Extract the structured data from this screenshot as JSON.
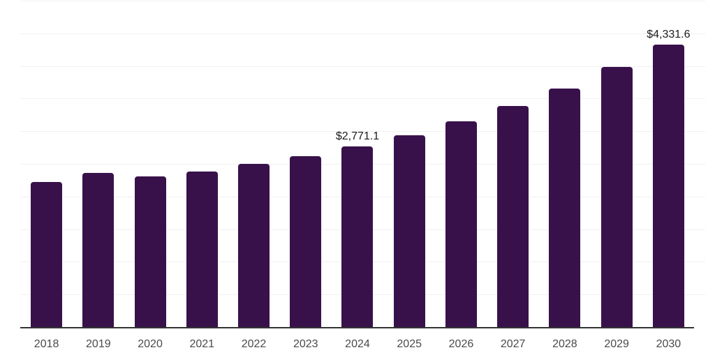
{
  "chart_data": {
    "type": "bar",
    "title": "",
    "xlabel": "",
    "ylabel": "",
    "categories": [
      "2018",
      "2019",
      "2020",
      "2021",
      "2022",
      "2023",
      "2024",
      "2025",
      "2026",
      "2027",
      "2028",
      "2029",
      "2030"
    ],
    "values": [
      2225,
      2360,
      2310,
      2380,
      2505,
      2620,
      2771.1,
      2940,
      3150,
      3390,
      3655,
      3985,
      4331.6
    ],
    "data_labels": [
      null,
      null,
      null,
      null,
      null,
      null,
      "$2,771.1",
      null,
      null,
      null,
      null,
      null,
      "$4,331.6"
    ],
    "ylim": [
      0,
      5000
    ],
    "gridline_step": 500,
    "grid": "horizontal",
    "legend": "none",
    "colors": {
      "bar": "#38114b",
      "gridline": "#f1f1f1",
      "axis_line": "#333333",
      "value_label_text": "#1a1a1a",
      "tick_label_text": "#4a4a4a",
      "background": "#ffffff"
    }
  }
}
